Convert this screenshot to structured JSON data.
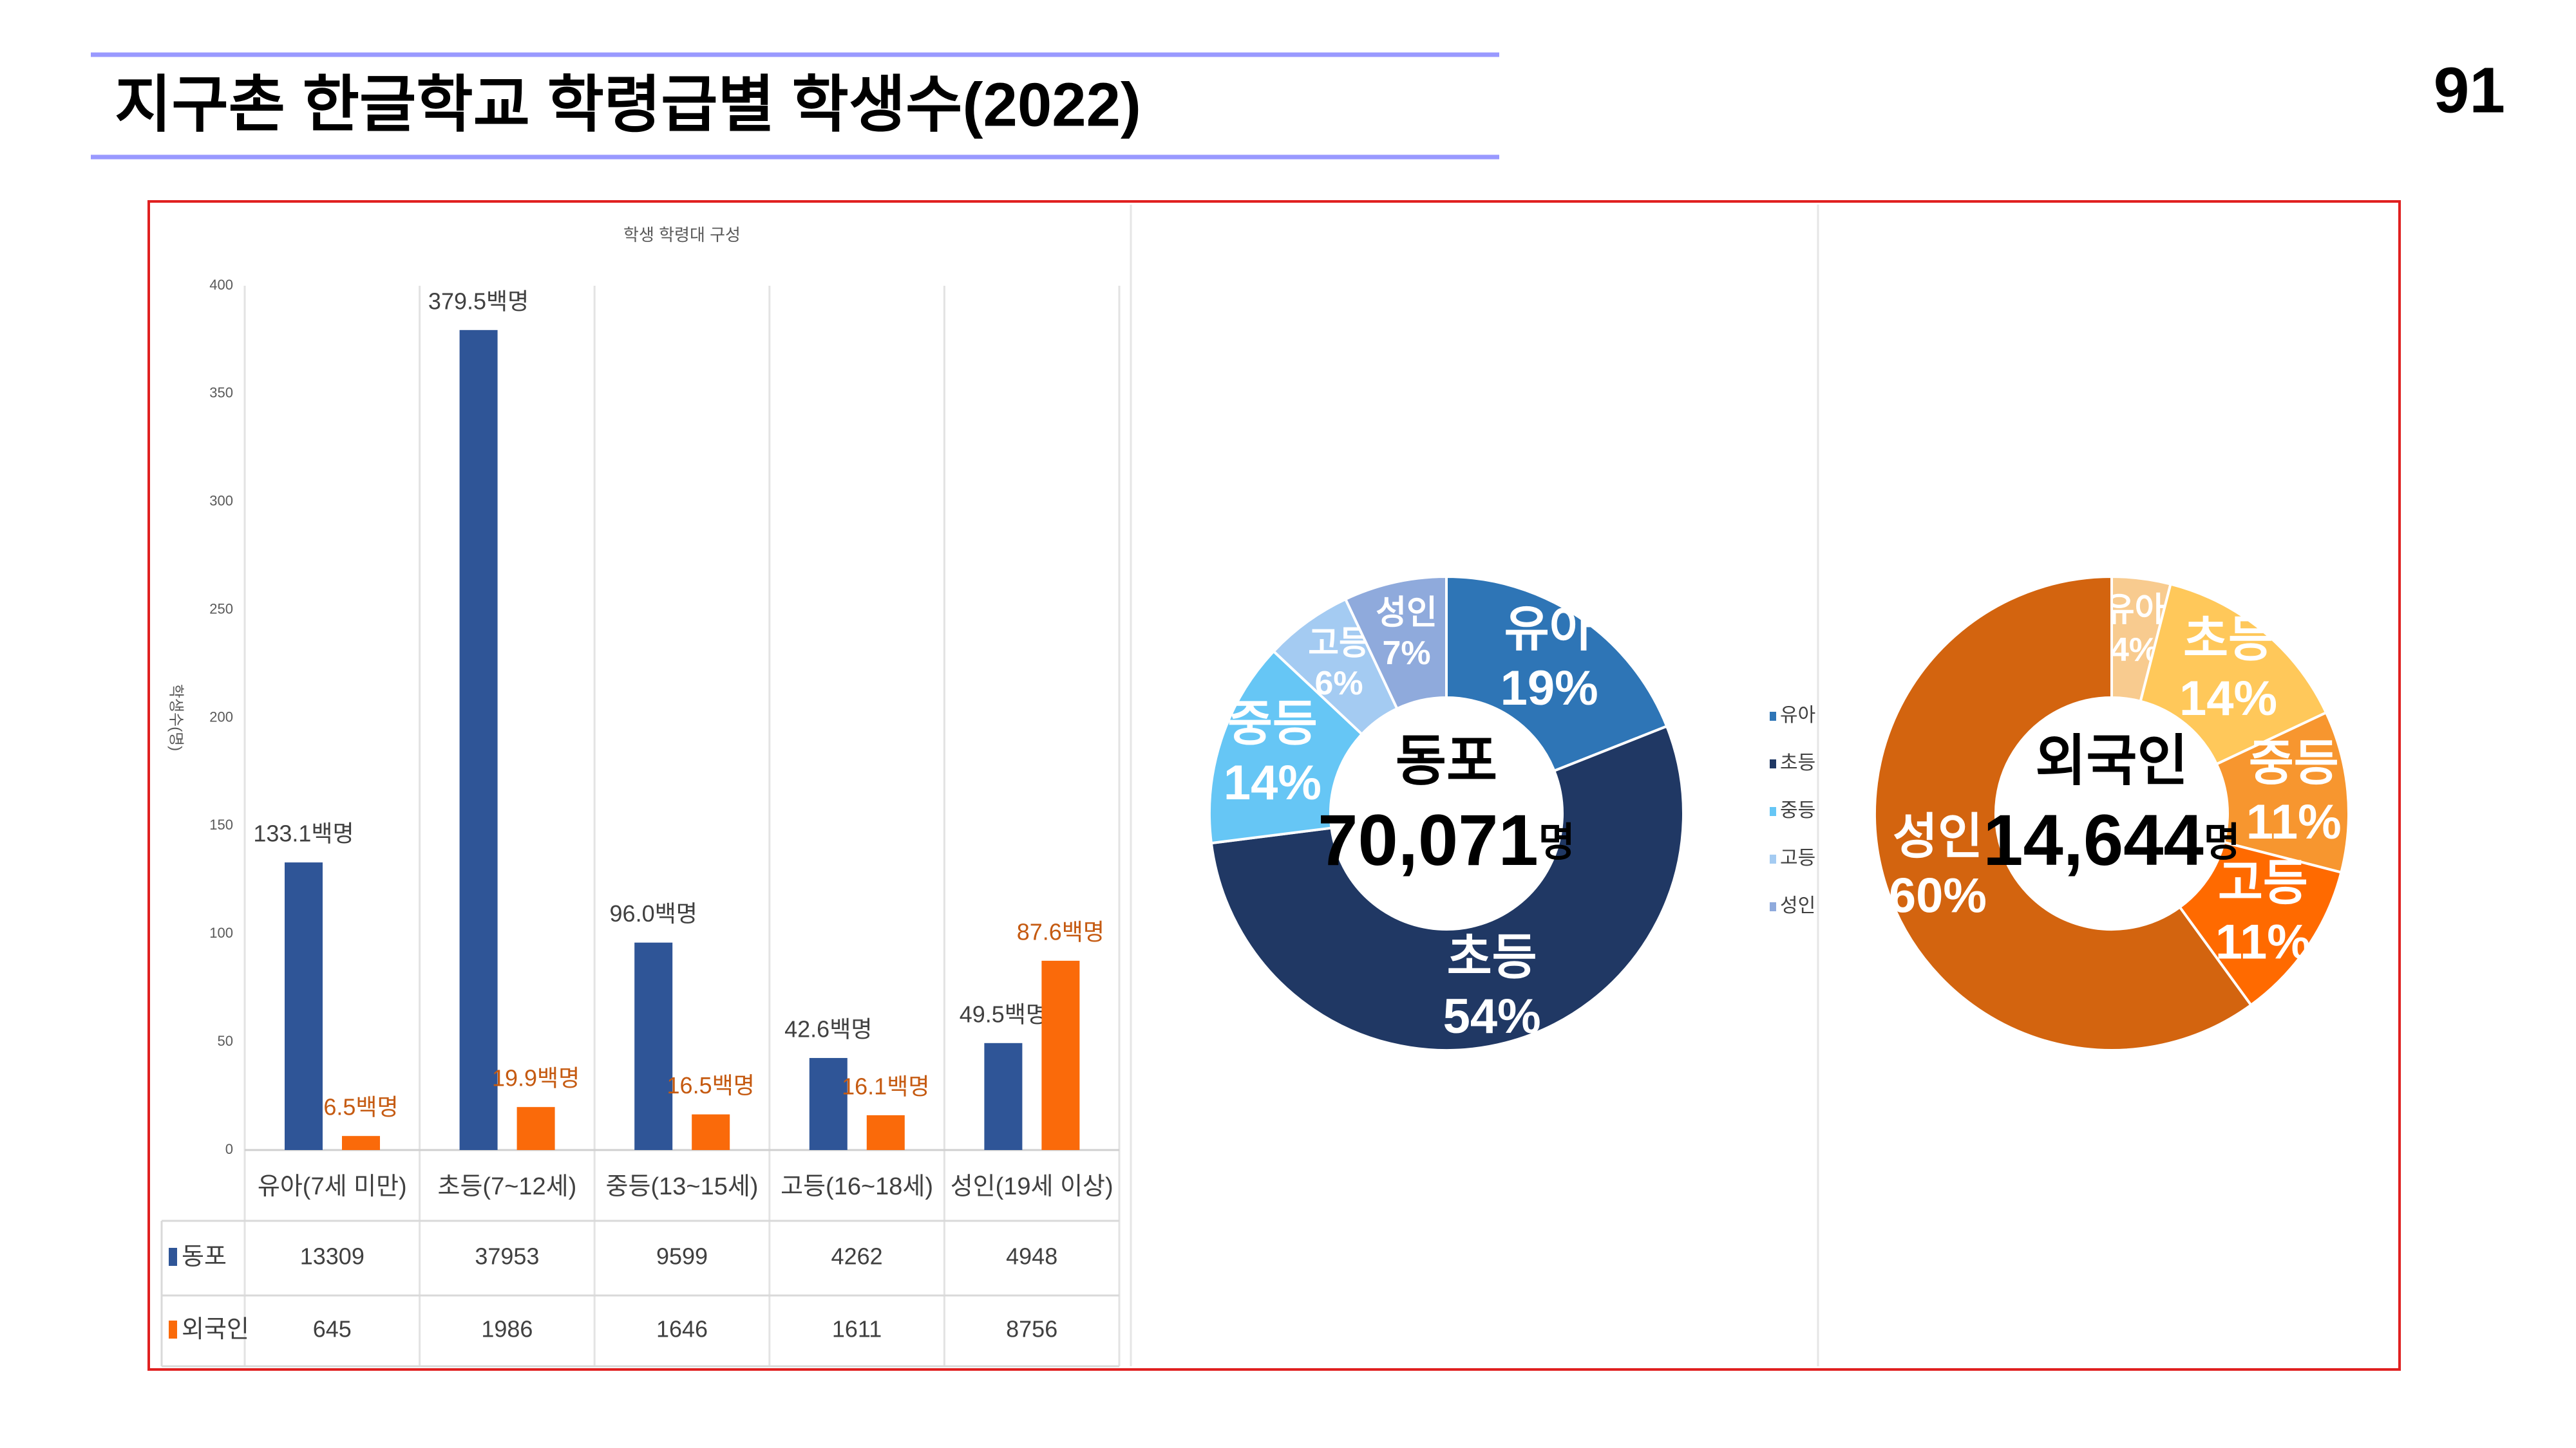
{
  "header": {
    "title": "지구촌 한글학교 학령급별 학생수(2022)",
    "page_number": "91"
  },
  "chart_data": [
    {
      "type": "bar",
      "title": "학생 학령대 구성",
      "y_label": "학생수(명)",
      "categories": [
        "유아(7세 미만)",
        "초등(7~12세)",
        "중등(13~15세)",
        "고등(16~18세)",
        "성인(19세 이상)"
      ],
      "series": [
        {
          "name": "동포",
          "color": "#2f5597",
          "label_color": "#404040",
          "values": [
            133.1,
            379.5,
            96.0,
            42.6,
            49.5
          ],
          "value_labels": [
            "133.1백명",
            "379.5백명",
            "96.0백명",
            "42.6백명",
            "49.5백명"
          ],
          "table_values": [
            13309,
            37953,
            9599,
            4262,
            4948
          ]
        },
        {
          "name": "외국인",
          "color": "#fa6a0a",
          "label_color": "#c55a11",
          "values": [
            6.5,
            19.9,
            16.5,
            16.1,
            87.6
          ],
          "value_labels": [
            "6.5백명",
            "19.9백명",
            "16.5백명",
            "16.1백명",
            "87.6백명"
          ],
          "table_values": [
            645,
            1986,
            1646,
            1611,
            8756
          ]
        }
      ],
      "ylim": [
        0,
        400
      ],
      "yticks": [
        0,
        50,
        100,
        150,
        200,
        250,
        300,
        350,
        400
      ],
      "grid": false
    },
    {
      "type": "donut",
      "center_title": "동포",
      "center_value": {
        "value": 70071,
        "label": "70,071"
      },
      "center_unit": "명",
      "categories": [
        "유아",
        "초등",
        "중등",
        "고등",
        "성인"
      ],
      "values": [
        19,
        54,
        14,
        6,
        7
      ],
      "value_labels": [
        "19%",
        "54%",
        "14%",
        "6%",
        "7%"
      ],
      "colors": [
        "#2e75b6",
        "#203864",
        "#66c6f5",
        "#a4cbf2",
        "#8faadc"
      ],
      "legend": "right"
    },
    {
      "type": "donut",
      "center_title": "외국인",
      "center_value": {
        "value": 14644,
        "label": "14,644"
      },
      "center_unit": "명",
      "categories": [
        "유아",
        "초등",
        "중등",
        "고등",
        "성인"
      ],
      "values": [
        4,
        14,
        11,
        11,
        60
      ],
      "value_labels": [
        "4%",
        "14%",
        "11%",
        "11%",
        "60%"
      ],
      "colors": [
        "#f8cb8f",
        "#ffc85a",
        "#f7962f",
        "#ff6a00",
        "#d3640f"
      ]
    }
  ]
}
